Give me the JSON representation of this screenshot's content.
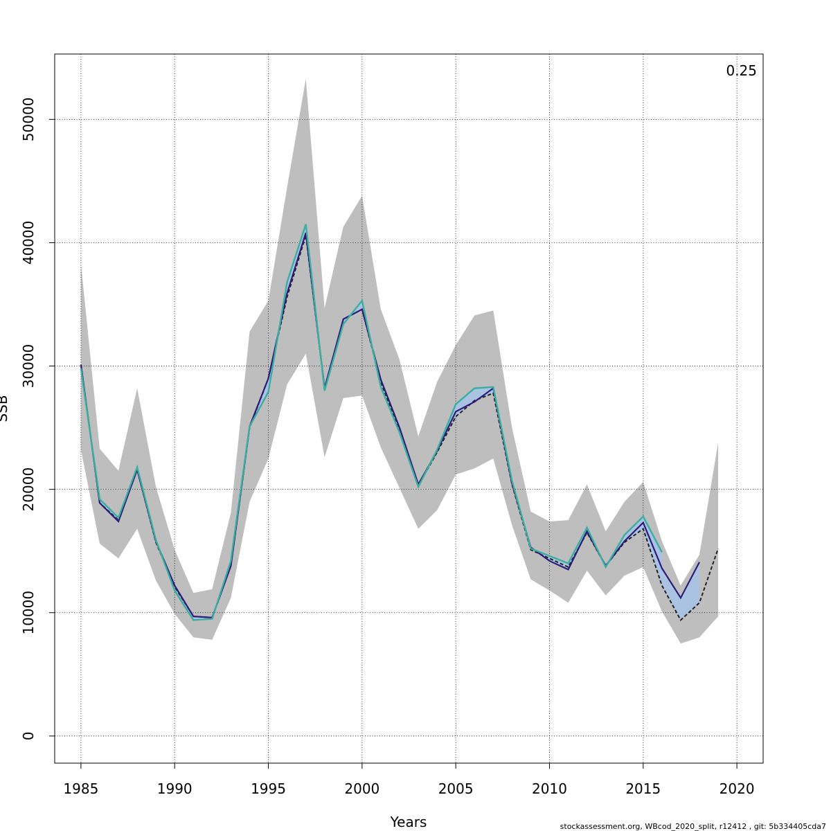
{
  "chart_data": {
    "type": "line",
    "title": "",
    "xlabel": "Years",
    "ylabel": "SSB",
    "corner_label": "0.25",
    "footer": "stockassessment.org, WBcod_2020_split, r12412 , git: 5b334405cda7",
    "xlim": [
      1983.6,
      2021.4
    ],
    "ylim": [
      -2200,
      55300
    ],
    "x_ticks": [
      1985,
      1990,
      1995,
      2000,
      2005,
      2010,
      2015,
      2020
    ],
    "y_ticks": [
      0,
      10000,
      20000,
      30000,
      40000,
      50000
    ],
    "grid": true,
    "colors": {
      "band": "#bebebe",
      "base": "#222222",
      "peel1": "#2e1a7a",
      "peel2": "#3aaea0",
      "peel_fill": "#a7c3e6"
    },
    "confidence_band": {
      "x": [
        1985,
        1986,
        1987,
        1988,
        1989,
        1990,
        1991,
        1992,
        1993,
        1994,
        1995,
        1996,
        1997,
        1998,
        1999,
        2000,
        2001,
        2002,
        2003,
        2004,
        2005,
        2006,
        2007,
        2008,
        2009,
        2010,
        2011,
        2012,
        2013,
        2014,
        2015,
        2016,
        2017,
        2018,
        2019
      ],
      "low": [
        23200,
        15600,
        14400,
        16800,
        12600,
        9900,
        8000,
        7800,
        11200,
        19000,
        22500,
        28500,
        31000,
        22600,
        27400,
        27600,
        23400,
        20100,
        16800,
        18300,
        21200,
        21700,
        22500,
        17100,
        12700,
        11800,
        10800,
        13400,
        11400,
        13000,
        13700,
        10100,
        7500,
        8000,
        9700
      ],
      "high": [
        38300,
        23300,
        21500,
        28200,
        20200,
        15100,
        11600,
        11900,
        18100,
        32800,
        35300,
        44500,
        53300,
        34700,
        41300,
        43800,
        34600,
        30500,
        24300,
        28700,
        31700,
        34100,
        34500,
        25000,
        18200,
        17400,
        17500,
        20400,
        16600,
        19000,
        20600,
        15800,
        12200,
        14700,
        23800
      ]
    },
    "series": [
      {
        "x": [
          1985,
          1986,
          1987,
          1988,
          1989,
          1990,
          1991,
          1992,
          1993,
          1994,
          1995,
          1996,
          1997,
          1998,
          1999,
          2000,
          2001,
          2002,
          2003,
          2004,
          2005,
          2006,
          2007,
          2008,
          2009,
          2010,
          2011,
          2012,
          2013,
          2014,
          2015,
          2016,
          2017,
          2018,
          2019
        ],
        "values": [
          30100,
          18900,
          17500,
          21600,
          15700,
          12100,
          9700,
          9600,
          13800,
          25000,
          29000,
          35600,
          40600,
          28200,
          33800,
          34600,
          28700,
          24700,
          20300,
          23000,
          25900,
          27200,
          27800,
          20400,
          15100,
          14400,
          13700,
          16500,
          13800,
          15700,
          16800,
          12200,
          9400,
          10800,
          15200
        ],
        "style": "dashed"
      },
      {
        "x": [
          1985,
          1986,
          1987,
          1988,
          1989,
          1990,
          1991,
          1992,
          1993,
          1994,
          1995,
          1996,
          1997,
          1998,
          1999,
          2000,
          2001,
          2002,
          2003,
          2004,
          2005,
          2006,
          2007,
          2008,
          2009,
          2010,
          2011,
          2012,
          2013,
          2014,
          2015,
          2016,
          2017,
          2018
        ],
        "values": [
          30100,
          18900,
          17400,
          21600,
          15800,
          12200,
          9700,
          9600,
          13800,
          25100,
          29000,
          35900,
          40800,
          28200,
          33800,
          34600,
          28900,
          25000,
          20400,
          23100,
          26300,
          27100,
          28200,
          20500,
          15300,
          14200,
          13500,
          16600,
          13800,
          15800,
          17300,
          13600,
          11200,
          14100
        ],
        "style": "solid"
      },
      {
        "x": [
          1985,
          1986,
          1987,
          1988,
          1989,
          1990,
          1991,
          1992,
          1993,
          1994,
          1995,
          1996,
          1997,
          1998,
          1999,
          2000,
          2001,
          2002,
          2003,
          2004,
          2005,
          2006,
          2007,
          2008,
          2009,
          2010,
          2011,
          2012,
          2013,
          2014,
          2015,
          2016
        ],
        "values": [
          29800,
          19200,
          17700,
          21800,
          15900,
          11800,
          9400,
          9500,
          14200,
          25100,
          27900,
          36800,
          41500,
          28000,
          33400,
          35300,
          28300,
          24600,
          20200,
          23200,
          26900,
          28200,
          28300,
          20700,
          15200,
          14600,
          14000,
          16900,
          13700,
          16300,
          17800,
          14900
        ],
        "style": "solid"
      }
    ]
  }
}
